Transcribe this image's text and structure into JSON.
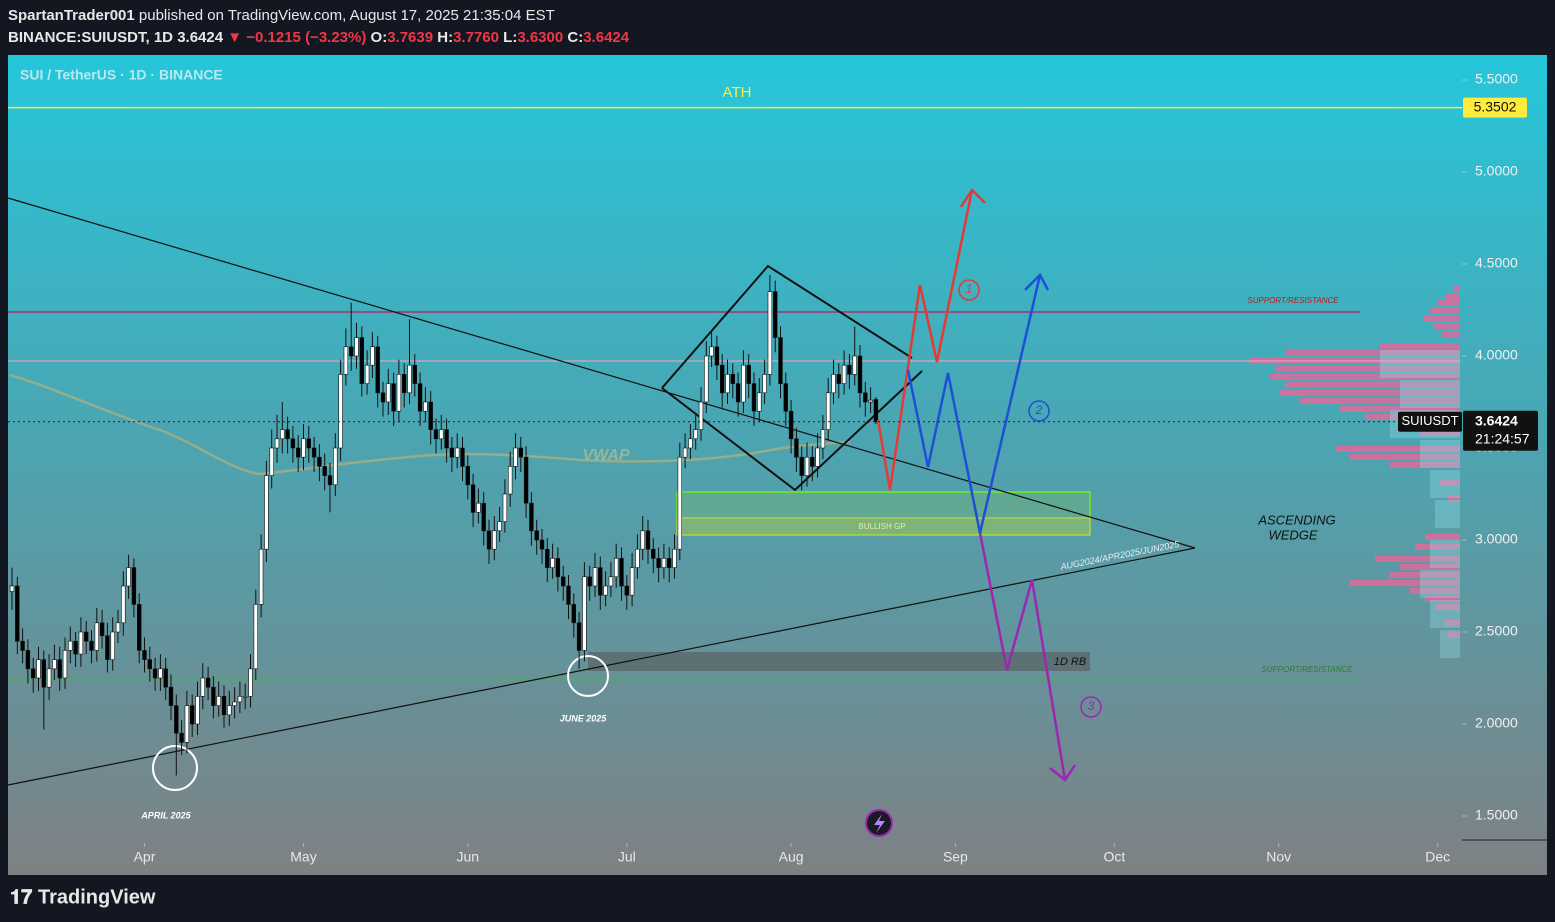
{
  "header": {
    "author": "SpartanTrader001",
    "published": "published on TradingView.com, August 17, 2025 21:35:04 EST",
    "symbol": "BINANCE:SUIUSDT, 1D",
    "price": "3.6424",
    "change": "▼ −0.1215 (−3.23%)",
    "open_label": "O:",
    "open": "3.7639",
    "high_label": "H:",
    "high": "3.7760",
    "low_label": "L:",
    "low": "3.6300",
    "close_label": "C:",
    "close": "3.6424"
  },
  "footer": {
    "brand": "TradingView"
  },
  "chart_data": {
    "type": "candlestick",
    "title": "SUI / TetherUS · 1D · BINANCE",
    "ylim": [
      1.3674,
      5.5
    ],
    "yticks": [
      {
        "value": 5.5,
        "label": "5.5000"
      },
      {
        "value": 5,
        "label": "5.0000"
      },
      {
        "value": 4.5,
        "label": "4.5000"
      },
      {
        "value": 4,
        "label": "4.0000"
      },
      {
        "value": 3.5,
        "label": "3.5000"
      },
      {
        "value": 3,
        "label": "3.0000"
      },
      {
        "value": 2.5,
        "label": "2.5000"
      },
      {
        "value": 2,
        "label": "2.0000"
      },
      {
        "value": 1.5,
        "label": "1.5000"
      }
    ],
    "xticks": [
      {
        "value": 25,
        "label": "Apr"
      },
      {
        "value": 55,
        "label": "May"
      },
      {
        "value": 86,
        "label": "Jun"
      },
      {
        "value": 116,
        "label": "Jul"
      },
      {
        "value": 147,
        "label": "Aug"
      },
      {
        "value": 178,
        "label": "Sep"
      },
      {
        "value": 208,
        "label": "Oct"
      },
      {
        "value": 239,
        "label": "Nov"
      },
      {
        "value": 269,
        "label": "Dec"
      }
    ],
    "ath_price": 5.3502,
    "last_price": 3.6424,
    "symbol_label": "SUIUSDT",
    "countdown": "21:24:57",
    "annotations": {
      "ath": "ATH",
      "sr_top": "SUPPORT/RESISTANCE",
      "sr_bottom": "SUPPORT/RESISTANCE",
      "vwap": "VWAP",
      "bullish_gp": "BULLISH GP",
      "rb": "1D RB",
      "wedge_dates": "AUG2024/APR2025/JUN2025",
      "wedge_1": "ASCENDING",
      "wedge_2": "WEDGE",
      "april": "APRIL 2025",
      "june": "JUNE 2025",
      "s1": "1",
      "s2": "2",
      "s3": "3"
    },
    "series": [
      {
        "name": "SUIUSDT",
        "up_color": "#ffffff",
        "down_color": "#000000",
        "values": [
          [
            2.72,
            2.85,
            2.62,
            2.75
          ],
          [
            2.75,
            2.8,
            2.38,
            2.45
          ],
          [
            2.45,
            2.52,
            2.33,
            2.4
          ],
          [
            2.4,
            2.46,
            2.22,
            2.3
          ],
          [
            2.3,
            2.36,
            2.17,
            2.25
          ],
          [
            2.25,
            2.42,
            2.18,
            2.35
          ],
          [
            2.35,
            2.4,
            1.97,
            2.2
          ],
          [
            2.2,
            2.38,
            2.13,
            2.3
          ],
          [
            2.3,
            2.43,
            2.24,
            2.35
          ],
          [
            2.35,
            2.42,
            2.18,
            2.25
          ],
          [
            2.25,
            2.47,
            2.19,
            2.4
          ],
          [
            2.4,
            2.53,
            2.33,
            2.45
          ],
          [
            2.45,
            2.5,
            2.31,
            2.38
          ],
          [
            2.38,
            2.58,
            2.31,
            2.5
          ],
          [
            2.5,
            2.56,
            2.38,
            2.45
          ],
          [
            2.45,
            2.51,
            2.33,
            2.4
          ],
          [
            2.4,
            2.63,
            2.34,
            2.55
          ],
          [
            2.55,
            2.62,
            2.41,
            2.48
          ],
          [
            2.48,
            2.55,
            2.28,
            2.35
          ],
          [
            2.35,
            2.58,
            2.29,
            2.5
          ],
          [
            2.5,
            2.62,
            2.44,
            2.55
          ],
          [
            2.55,
            2.83,
            2.48,
            2.75
          ],
          [
            2.75,
            2.92,
            2.68,
            2.85
          ],
          [
            2.85,
            2.9,
            2.58,
            2.65
          ],
          [
            2.65,
            2.71,
            2.33,
            2.4
          ],
          [
            2.4,
            2.47,
            2.28,
            2.35
          ],
          [
            2.35,
            2.42,
            2.23,
            2.3
          ],
          [
            2.3,
            2.36,
            2.18,
            2.25
          ],
          [
            2.25,
            2.38,
            2.18,
            2.3
          ],
          [
            2.3,
            2.36,
            2.13,
            2.2
          ],
          [
            2.2,
            2.27,
            2.02,
            2.1
          ],
          [
            2.1,
            2.16,
            1.72,
            1.95
          ],
          [
            1.95,
            2.02,
            1.83,
            1.9
          ],
          [
            1.9,
            2.18,
            1.84,
            2.1
          ],
          [
            2.1,
            2.16,
            1.93,
            2.0
          ],
          [
            2.0,
            2.23,
            1.94,
            2.15
          ],
          [
            2.15,
            2.33,
            2.08,
            2.25
          ],
          [
            2.25,
            2.31,
            2.13,
            2.2
          ],
          [
            2.2,
            2.26,
            2.03,
            2.1
          ],
          [
            2.1,
            2.23,
            2.04,
            2.15
          ],
          [
            2.15,
            2.21,
            1.98,
            2.05
          ],
          [
            2.05,
            2.18,
            1.99,
            2.1
          ],
          [
            2.1,
            2.2,
            2.03,
            2.12
          ],
          [
            2.12,
            2.23,
            2.06,
            2.15
          ],
          [
            2.15,
            2.22,
            2.08,
            2.15
          ],
          [
            2.15,
            2.38,
            2.09,
            2.3
          ],
          [
            2.3,
            2.73,
            2.24,
            2.65
          ],
          [
            2.65,
            3.03,
            2.58,
            2.95
          ],
          [
            2.95,
            3.43,
            2.88,
            3.35
          ],
          [
            3.35,
            3.6,
            3.28,
            3.5
          ],
          [
            3.5,
            3.68,
            3.42,
            3.55
          ],
          [
            3.55,
            3.75,
            3.47,
            3.6
          ],
          [
            3.6,
            3.67,
            3.47,
            3.55
          ],
          [
            3.55,
            3.62,
            3.42,
            3.5
          ],
          [
            3.5,
            3.57,
            3.37,
            3.45
          ],
          [
            3.45,
            3.63,
            3.38,
            3.55
          ],
          [
            3.55,
            3.62,
            3.42,
            3.5
          ],
          [
            3.5,
            3.56,
            3.37,
            3.45
          ],
          [
            3.45,
            3.52,
            3.32,
            3.4
          ],
          [
            3.4,
            3.47,
            3.27,
            3.35
          ],
          [
            3.35,
            3.42,
            3.15,
            3.3
          ],
          [
            3.3,
            3.58,
            3.24,
            3.5
          ],
          [
            3.5,
            3.98,
            3.43,
            3.9
          ],
          [
            3.9,
            4.15,
            3.84,
            4.05
          ],
          [
            4.05,
            4.29,
            3.92,
            4.0
          ],
          [
            4.0,
            4.18,
            3.93,
            4.1
          ],
          [
            4.1,
            4.16,
            3.78,
            3.85
          ],
          [
            3.85,
            4.03,
            3.79,
            3.95
          ],
          [
            3.95,
            4.13,
            3.88,
            4.05
          ],
          [
            4.05,
            4.11,
            3.72,
            3.8
          ],
          [
            3.8,
            3.86,
            3.67,
            3.75
          ],
          [
            3.75,
            3.93,
            3.68,
            3.85
          ],
          [
            3.85,
            3.91,
            3.62,
            3.7
          ],
          [
            3.7,
            3.98,
            3.64,
            3.9
          ],
          [
            3.9,
            3.96,
            3.72,
            3.8
          ],
          [
            3.8,
            4.2,
            3.74,
            3.95
          ],
          [
            3.95,
            4.01,
            3.78,
            3.85
          ],
          [
            3.85,
            3.91,
            3.62,
            3.7
          ],
          [
            3.7,
            3.83,
            3.64,
            3.75
          ],
          [
            3.75,
            3.81,
            3.52,
            3.6
          ],
          [
            3.6,
            3.66,
            3.47,
            3.55
          ],
          [
            3.55,
            3.68,
            3.49,
            3.6
          ],
          [
            3.6,
            3.66,
            3.42,
            3.5
          ],
          [
            3.5,
            3.56,
            3.37,
            3.45
          ],
          [
            3.45,
            3.58,
            3.39,
            3.5
          ],
          [
            3.5,
            3.56,
            3.32,
            3.4
          ],
          [
            3.4,
            3.46,
            3.22,
            3.3
          ],
          [
            3.3,
            3.36,
            3.07,
            3.15
          ],
          [
            3.15,
            3.28,
            3.09,
            3.2
          ],
          [
            3.2,
            3.26,
            2.97,
            3.05
          ],
          [
            3.05,
            3.11,
            2.87,
            2.95
          ],
          [
            2.95,
            3.13,
            2.89,
            3.05
          ],
          [
            3.05,
            3.18,
            2.99,
            3.1
          ],
          [
            3.1,
            3.33,
            3.04,
            3.25
          ],
          [
            3.25,
            3.48,
            3.18,
            3.4
          ],
          [
            3.4,
            3.58,
            3.33,
            3.5
          ],
          [
            3.5,
            3.56,
            3.37,
            3.45
          ],
          [
            3.45,
            3.51,
            3.12,
            3.2
          ],
          [
            3.2,
            3.26,
            2.97,
            3.05
          ],
          [
            3.05,
            3.11,
            2.92,
            3.0
          ],
          [
            3.0,
            3.06,
            2.87,
            2.95
          ],
          [
            2.95,
            3.01,
            2.77,
            2.85
          ],
          [
            2.85,
            2.98,
            2.79,
            2.9
          ],
          [
            2.9,
            2.96,
            2.72,
            2.8
          ],
          [
            2.8,
            2.86,
            2.67,
            2.75
          ],
          [
            2.75,
            2.81,
            2.57,
            2.65
          ],
          [
            2.65,
            2.71,
            2.47,
            2.55
          ],
          [
            2.55,
            2.61,
            2.3,
            2.4
          ],
          [
            2.4,
            2.88,
            2.34,
            2.8
          ],
          [
            2.8,
            2.86,
            2.67,
            2.75
          ],
          [
            2.75,
            2.93,
            2.69,
            2.85
          ],
          [
            2.85,
            2.91,
            2.62,
            2.7
          ],
          [
            2.7,
            2.83,
            2.64,
            2.75
          ],
          [
            2.75,
            2.88,
            2.69,
            2.8
          ],
          [
            2.8,
            2.98,
            2.74,
            2.9
          ],
          [
            2.9,
            2.96,
            2.67,
            2.75
          ],
          [
            2.75,
            2.81,
            2.62,
            2.7
          ],
          [
            2.7,
            2.93,
            2.64,
            2.85
          ],
          [
            2.85,
            3.03,
            2.79,
            2.95
          ],
          [
            2.95,
            3.13,
            2.89,
            3.05
          ],
          [
            3.05,
            3.11,
            2.87,
            2.95
          ],
          [
            2.95,
            3.01,
            2.82,
            2.9
          ],
          [
            2.9,
            2.96,
            2.77,
            2.85
          ],
          [
            2.85,
            2.98,
            2.79,
            2.9
          ],
          [
            2.9,
            2.96,
            2.77,
            2.85
          ],
          [
            2.85,
            3.03,
            2.79,
            2.95
          ],
          [
            2.95,
            3.53,
            2.89,
            3.45
          ],
          [
            3.45,
            3.58,
            3.39,
            3.5
          ],
          [
            3.5,
            3.63,
            3.44,
            3.55
          ],
          [
            3.55,
            3.68,
            3.49,
            3.6
          ],
          [
            3.6,
            3.83,
            3.54,
            3.75
          ],
          [
            3.75,
            4.08,
            3.69,
            4.0
          ],
          [
            4.0,
            4.13,
            3.94,
            4.05
          ],
          [
            4.05,
            4.11,
            3.87,
            3.95
          ],
          [
            3.95,
            4.01,
            3.72,
            3.8
          ],
          [
            3.8,
            3.98,
            3.74,
            3.9
          ],
          [
            3.9,
            3.96,
            3.77,
            3.85
          ],
          [
            3.85,
            3.91,
            3.67,
            3.75
          ],
          [
            3.75,
            4.03,
            3.69,
            3.95
          ],
          [
            3.95,
            4.01,
            3.77,
            3.85
          ],
          [
            3.85,
            3.91,
            3.62,
            3.7
          ],
          [
            3.7,
            3.88,
            3.64,
            3.8
          ],
          [
            3.8,
            3.98,
            3.74,
            3.9
          ],
          [
            3.9,
            4.44,
            3.84,
            4.35
          ],
          [
            4.35,
            4.41,
            4.02,
            4.1
          ],
          [
            4.1,
            4.16,
            3.77,
            3.85
          ],
          [
            3.85,
            3.91,
            3.62,
            3.7
          ],
          [
            3.7,
            3.76,
            3.47,
            3.55
          ],
          [
            3.55,
            3.61,
            3.37,
            3.45
          ],
          [
            3.45,
            3.51,
            3.27,
            3.35
          ],
          [
            3.35,
            3.53,
            3.29,
            3.45
          ],
          [
            3.45,
            3.51,
            3.32,
            3.4
          ],
          [
            3.4,
            3.58,
            3.34,
            3.5
          ],
          [
            3.5,
            3.68,
            3.44,
            3.6
          ],
          [
            3.6,
            3.88,
            3.54,
            3.8
          ],
          [
            3.8,
            3.98,
            3.74,
            3.9
          ],
          [
            3.9,
            3.96,
            3.77,
            3.85
          ],
          [
            3.85,
            4.03,
            3.79,
            3.95
          ],
          [
            3.95,
            4.01,
            3.82,
            3.9
          ],
          [
            3.9,
            4.16,
            3.84,
            4.0
          ],
          [
            4.0,
            4.06,
            3.72,
            3.8
          ],
          [
            3.8,
            3.86,
            3.67,
            3.75
          ],
          [
            3.75,
            3.83,
            3.69,
            3.76
          ],
          [
            3.7639,
            3.776,
            3.63,
            3.6424
          ]
        ]
      }
    ]
  }
}
